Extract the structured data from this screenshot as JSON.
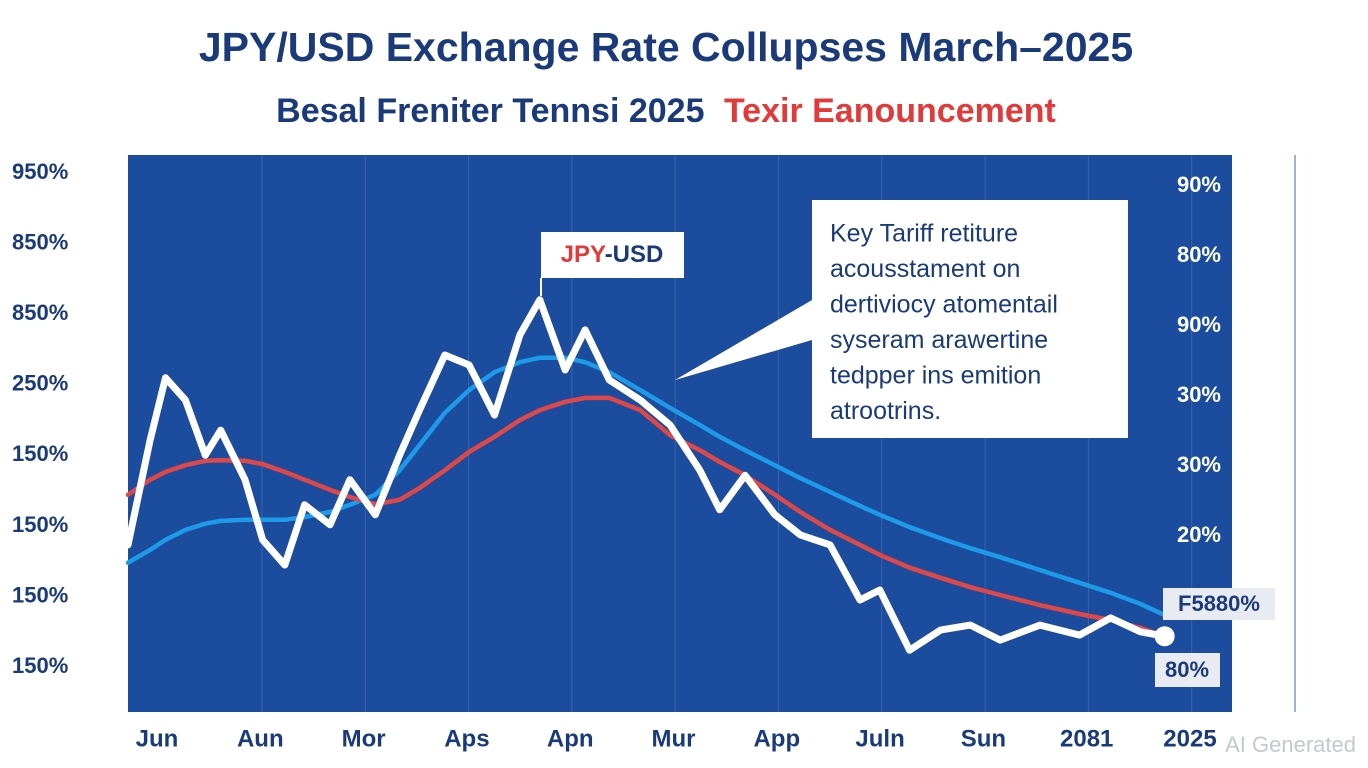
{
  "chart_data": {
    "type": "line",
    "title": "JPY/USD Exchange Rate Collupses March–2025",
    "subtitle": [
      "Besal Freniter Tennsi 2025",
      "Texir Eanouncement"
    ],
    "y_axis_labels": [
      "950%",
      "850%",
      "850%",
      "250%",
      "150%",
      "150%",
      "150%",
      "150%"
    ],
    "y2_axis_labels": [
      "90%",
      "80%",
      "90%",
      "30%",
      "30%",
      "20%"
    ],
    "categories": [
      "Jun",
      "Aun",
      "Mor",
      "Aps",
      "Apn",
      "Mur",
      "App",
      "Juln",
      "Sun",
      "2081",
      "2025"
    ],
    "xlim": [
      0,
      100
    ],
    "ylim": [
      0,
      100
    ],
    "x": [
      0,
      2,
      3.4,
      5.2,
      7,
      8.4,
      10.6,
      12.2,
      14.2,
      16,
      18.3,
      20.1,
      22.4,
      24.6,
      26.4,
      28.7,
      30.9,
      33.2,
      35.5,
      37.3,
      39.6,
      41.4,
      43.6,
      46.4,
      49.1,
      51.8,
      53.6,
      55.9,
      58.6,
      60.9,
      63.6,
      66.3,
      68.1,
      70.8,
      73.6,
      76.3,
      79,
      82.6,
      86.2,
      89,
      91.7,
      93.9
    ],
    "series": [
      {
        "color": "#ffffff",
        "values": [
          30.0,
          48.8,
          60.0,
          56.0,
          46.1,
          50.6,
          41.7,
          30.9,
          26.4,
          37.2,
          33.6,
          41.7,
          35.4,
          46.1,
          54.2,
          64.1,
          62.3,
          53.3,
          67.7,
          74.0,
          61.4,
          68.6,
          59.6,
          56.0,
          51.5,
          43.4,
          36.3,
          42.5,
          35.4,
          31.8,
          30.0,
          20.1,
          21.9,
          11.1,
          14.7,
          15.6,
          12.9,
          15.6,
          13.8,
          16.9,
          14.4,
          13.6
        ]
      },
      {
        "color": "#1e9be8",
        "values": [
          26.8,
          29.1,
          30.9,
          32.7,
          33.8,
          34.3,
          34.5,
          34.5,
          34.5,
          35.0,
          35.9,
          37.2,
          39.0,
          43.4,
          47.9,
          53.7,
          57.8,
          61.0,
          62.8,
          63.6,
          63.6,
          62.8,
          61.0,
          57.8,
          54.6,
          51.5,
          49.4,
          47.0,
          44.3,
          42.0,
          39.5,
          37.0,
          35.4,
          33.2,
          31.2,
          29.4,
          27.8,
          25.5,
          23.2,
          21.4,
          19.4,
          17.4
        ]
      },
      {
        "color": "#e04848",
        "values": [
          39.0,
          41.7,
          43.1,
          44.3,
          45.1,
          45.2,
          45.1,
          44.5,
          43.1,
          41.7,
          39.9,
          38.6,
          37.3,
          38.1,
          40.2,
          43.4,
          46.7,
          49.4,
          52.4,
          54.2,
          55.7,
          56.4,
          56.4,
          54.2,
          49.7,
          47.0,
          44.9,
          42.5,
          39.0,
          35.9,
          32.7,
          30.0,
          28.2,
          25.9,
          24.1,
          22.4,
          21.0,
          19.2,
          17.6,
          16.5,
          15.1,
          13.6
        ]
      }
    ],
    "peak_label": [
      "JPY",
      "-USD"
    ],
    "callout": [
      "Key Tariff retiture",
      "acousstament on",
      "dertiviocy atomentail",
      "syseram arawertine",
      "tedpper ins emition",
      "atrootrins."
    ],
    "end_labels": [
      "F5880%",
      "80%"
    ],
    "watermark": "AI Generated"
  }
}
